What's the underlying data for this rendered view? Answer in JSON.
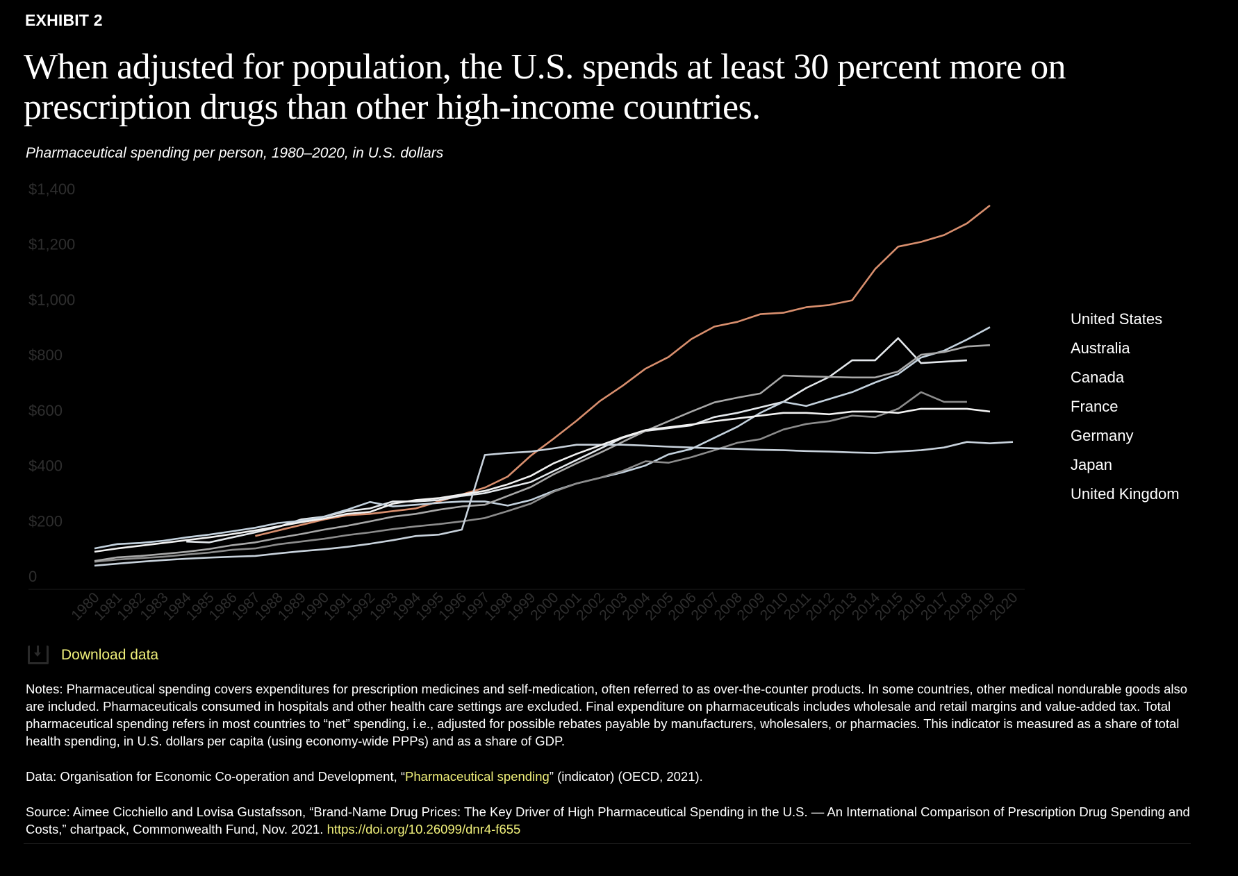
{
  "exhibit": "EXHIBIT 2",
  "title": "When adjusted for population, the U.S. spends at least 30 percent more on prescription drugs than other high-income countries.",
  "subtitle": "Pharmaceutical spending per person, 1980–2020, in U.S. dollars",
  "download_label": "Download data",
  "notes": "Notes: Pharmaceutical spending covers expenditures for prescription medicines and self-medication, often referred to as over-the-counter products. In some countries, other medical nondurable goods also are included. Pharmaceuticals consumed in hospitals and other health care settings are excluded. Final expenditure on pharmaceuticals includes wholesale and retail margins and value-added tax. Total pharmaceutical spending refers in most countries to “net” spending, i.e., adjusted for possible rebates payable by manufacturers, wholesalers, or pharmacies. This indicator is measured as a share of total health spending, in U.S. dollars per capita (using economy-wide PPPs) and as a share of GDP.",
  "data_source": {
    "prefix": "Data: Organisation for Economic Co-operation and Development, “",
    "link": "Pharmaceutical spending",
    "suffix": "” (indicator) (OECD, 2021)."
  },
  "source": {
    "text": "Source: Aimee Cicchiello and Lovisa Gustafsson, “Brand-Name Drug Prices: The Key Driver of High Pharmaceutical Spending in the U.S. — An International Comparison of Prescription Drug Spending and Costs,” chartpack, Commonwealth Fund, Nov. 2021. ",
    "link": "https://doi.org/10.26099/dnr4-f655"
  },
  "chart_data": {
    "type": "line",
    "title": "Pharmaceutical spending per person, 1980–2020, in U.S. dollars",
    "xlabel": "",
    "ylabel": "",
    "ylim": [
      0,
      1400
    ],
    "yticks": [
      0,
      200,
      400,
      600,
      800,
      1000,
      1200,
      1400
    ],
    "ytick_labels": [
      "0",
      "$200",
      "$400",
      "$600",
      "$800",
      "$1,000",
      "$1,200",
      "$1,400"
    ],
    "x": [
      1980,
      1981,
      1982,
      1983,
      1984,
      1985,
      1986,
      1987,
      1988,
      1989,
      1990,
      1991,
      1992,
      1993,
      1994,
      1995,
      1996,
      1997,
      1998,
      1999,
      2000,
      2001,
      2002,
      2003,
      2004,
      2005,
      2006,
      2007,
      2008,
      2009,
      2010,
      2011,
      2012,
      2013,
      2014,
      2015,
      2016,
      2017,
      2018,
      2019,
      2020
    ],
    "grid": false,
    "legend": "right",
    "series": [
      {
        "name": "United States",
        "color": "#d98f6e",
        "values": [
          null,
          null,
          null,
          null,
          null,
          null,
          null,
          145,
          165,
          185,
          205,
          220,
          225,
          235,
          245,
          270,
          295,
          320,
          360,
          435,
          497,
          562,
          632,
          688,
          750,
          792,
          857,
          902,
          919,
          947,
          952,
          972,
          980,
          997,
          1110,
          1191,
          1208,
          1233,
          1275,
          1340,
          null
        ]
      },
      {
        "name": "Australia",
        "color": "#e4e8ec",
        "values": [
          null,
          null,
          null,
          null,
          125,
          122,
          140,
          158,
          178,
          205,
          215,
          235,
          245,
          270,
          270,
          275,
          290,
          300,
          320,
          340,
          380,
          420,
          460,
          500,
          525,
          535,
          545,
          575,
          590,
          610,
          630,
          680,
          720,
          780,
          780,
          860,
          770,
          775,
          780,
          null,
          null
        ]
      },
      {
        "name": "Canada",
        "color": "#c4d2de",
        "values": [
          100,
          116,
          120,
          128,
          140,
          150,
          162,
          175,
          192,
          200,
          215,
          240,
          268,
          252,
          258,
          265,
          270,
          270,
          255,
          275,
          308,
          335,
          355,
          375,
          400,
          440,
          460,
          500,
          540,
          590,
          630,
          615,
          640,
          665,
          700,
          730,
          790,
          815,
          855,
          900,
          null
        ]
      },
      {
        "name": "France",
        "color": "#8c8c8c",
        "values": [
          52,
          60,
          65,
          70,
          78,
          85,
          95,
          100,
          115,
          125,
          135,
          148,
          158,
          170,
          180,
          188,
          198,
          210,
          235,
          262,
          305,
          335,
          355,
          380,
          415,
          410,
          430,
          455,
          482,
          495,
          530,
          550,
          560,
          580,
          575,
          605,
          665,
          630,
          630,
          null,
          null
        ]
      },
      {
        "name": "Germany",
        "color": "#a8a8a8",
        "values": [
          55,
          68,
          73,
          80,
          88,
          98,
          112,
          122,
          138,
          152,
          168,
          182,
          198,
          215,
          225,
          240,
          252,
          258,
          290,
          322,
          368,
          408,
          445,
          485,
          525,
          560,
          595,
          628,
          645,
          660,
          725,
          722,
          720,
          718,
          718,
          740,
          800,
          810,
          830,
          835,
          null
        ]
      },
      {
        "name": "Japan",
        "color": "#c8d2dc",
        "values": [
          38,
          45,
          52,
          58,
          63,
          67,
          70,
          73,
          82,
          90,
          97,
          106,
          117,
          130,
          145,
          150,
          168,
          438,
          445,
          450,
          462,
          475,
          475,
          475,
          472,
          468,
          465,
          462,
          460,
          457,
          455,
          452,
          450,
          447,
          445,
          450,
          455,
          465,
          485,
          480,
          485
        ]
      },
      {
        "name": "United Kingdom",
        "color": "#f2f2f2",
        "values": [
          88,
          100,
          110,
          120,
          130,
          140,
          152,
          165,
          180,
          195,
          208,
          225,
          232,
          262,
          275,
          282,
          295,
          308,
          332,
          362,
          408,
          442,
          472,
          502,
          528,
          538,
          548,
          560,
          570,
          580,
          590,
          590,
          585,
          595,
          595,
          590,
          605,
          605,
          605,
          595,
          null
        ]
      }
    ]
  }
}
